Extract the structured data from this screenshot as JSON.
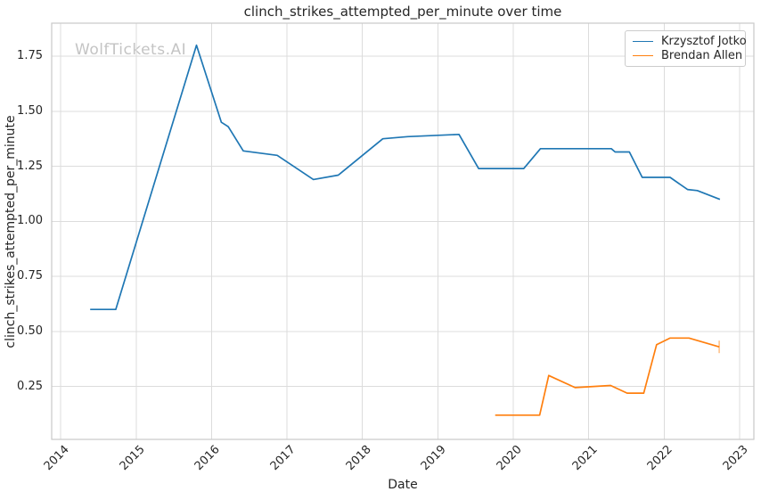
{
  "title": "clinch_strikes_attempted_per_minute over time",
  "watermark": "WolfTickets.AI",
  "axes": {
    "xlabel": "Date",
    "ylabel": "clinch_strikes_attempted_per_minute"
  },
  "legend": {
    "items": [
      {
        "label": "Krzysztof Jotko",
        "color": "#1f77b4"
      },
      {
        "label": "Brendan Allen",
        "color": "#ff7f0e"
      }
    ]
  },
  "chart_data": {
    "type": "line",
    "title": "clinch_strikes_attempted_per_minute over time",
    "xlabel": "Date",
    "ylabel": "clinch_strikes_attempted_per_minute",
    "xlim": [
      2013.88,
      2023.19
    ],
    "ylim": [
      0.01,
      1.9
    ],
    "xtick_values": [
      2014,
      2015,
      2016,
      2017,
      2018,
      2019,
      2020,
      2021,
      2022,
      2023
    ],
    "xtick_labels": [
      "2014",
      "2015",
      "2016",
      "2017",
      "2018",
      "2019",
      "2020",
      "2021",
      "2022",
      "2023"
    ],
    "ytick_values": [
      0.25,
      0.5,
      0.75,
      1.0,
      1.25,
      1.5,
      1.75
    ],
    "ytick_labels": [
      "0.25",
      "0.50",
      "0.75",
      "1.00",
      "1.25",
      "1.50",
      "1.75"
    ],
    "grid": true,
    "legend_position": "upper right",
    "series": [
      {
        "name": "Krzysztof Jotko",
        "color": "#1f77b4",
        "x": [
          2014.39,
          2014.73,
          2015.8,
          2016.13,
          2016.22,
          2016.42,
          2016.87,
          2017.35,
          2017.68,
          2018.27,
          2018.6,
          2019.28,
          2019.54,
          2020.14,
          2020.36,
          2021.3,
          2021.35,
          2021.54,
          2021.71,
          2022.08,
          2022.31,
          2022.44,
          2022.74
        ],
        "y": [
          0.6,
          0.6,
          1.8,
          1.45,
          1.43,
          1.32,
          1.3,
          1.19,
          1.21,
          1.375,
          1.385,
          1.395,
          1.24,
          1.24,
          1.33,
          1.33,
          1.315,
          1.315,
          1.2,
          1.2,
          1.145,
          1.14,
          1.1
        ]
      },
      {
        "name": "Brendan Allen",
        "color": "#ff7f0e",
        "end_tick": true,
        "x": [
          2019.76,
          2020.35,
          2020.47,
          2020.82,
          2021.29,
          2021.51,
          2021.73,
          2021.9,
          2022.08,
          2022.33,
          2022.73
        ],
        "y": [
          0.12,
          0.12,
          0.3,
          0.245,
          0.255,
          0.22,
          0.22,
          0.44,
          0.47,
          0.47,
          0.43
        ]
      }
    ]
  }
}
